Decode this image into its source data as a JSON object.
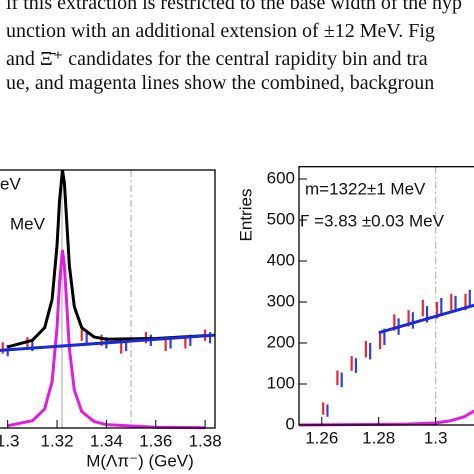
{
  "paragraph": {
    "lines": [
      "if this extraction is restricted to the base width of the hyp",
      "unction with an additional extension of ±12 MeV. Fig",
      "and Ξ̄⁺ candidates for the central rapidity bin and tra",
      "ue, and magenta lines show the combined, backgroun"
    ]
  },
  "chart_data": [
    {
      "type": "scatter",
      "x_label": "M(Λπ⁻) (GeV)",
      "annotations": [
        "eV",
        "MeV"
      ],
      "xlim": [
        1.29,
        1.384
      ],
      "ylim": [
        0,
        1000
      ],
      "xticks": [
        1.3,
        1.32,
        1.34,
        1.36,
        1.38
      ],
      "reference_lines": [
        {
          "x": 1.322,
          "style": "solid"
        },
        {
          "x": 1.35,
          "style": "dashed"
        }
      ],
      "series": [
        {
          "style": "points",
          "color": "#e8262e",
          "x": [
            1.298,
            1.308,
            1.33,
            1.338,
            1.346,
            1.356,
            1.364,
            1.372,
            1.38
          ],
          "values": [
            310,
            330,
            360,
            340,
            310,
            350,
            320,
            330,
            360
          ],
          "errors": [
            22,
            22,
            22,
            22,
            22,
            22,
            22,
            22,
            22
          ]
        },
        {
          "style": "points",
          "color": "#2f3fe0",
          "x": [
            1.3,
            1.31,
            1.332,
            1.34,
            1.348,
            1.358,
            1.366,
            1.374,
            1.382
          ],
          "values": [
            300,
            320,
            350,
            330,
            320,
            340,
            330,
            340,
            350
          ],
          "errors": [
            22,
            22,
            22,
            22,
            22,
            22,
            22,
            22,
            22
          ]
        },
        {
          "style": "line",
          "color": "#e01ee0",
          "x": [
            1.3,
            1.31,
            1.315,
            1.318,
            1.32,
            1.321,
            1.3222,
            1.323,
            1.325,
            1.327,
            1.33,
            1.335,
            1.34,
            1.36,
            1.38
          ],
          "values": [
            9,
            28,
            74,
            181,
            390,
            561,
            690,
            627,
            307,
            147,
            64,
            25,
            13,
            3,
            1
          ]
        },
        {
          "style": "line",
          "color": "#000000",
          "x": [
            1.3,
            1.31,
            1.315,
            1.318,
            1.32,
            1.321,
            1.3222,
            1.323,
            1.325,
            1.327,
            1.33,
            1.335,
            1.34,
            1.36,
            1.38
          ],
          "values": [
            314,
            340,
            389,
            498,
            708,
            880,
            1000,
            947,
            629,
            470,
            389,
            353,
            344,
            347,
            358
          ]
        },
        {
          "style": "line",
          "color": "#1a2ad8",
          "x": [
            1.29,
            1.384
          ],
          "values": [
            296,
            360
          ]
        }
      ]
    },
    {
      "type": "scatter",
      "y_label": "Entries",
      "annotations": [
        "m=1322±1 MeV",
        "Γ =3.83 ±0.03 MeV"
      ],
      "xlim": [
        1.252,
        1.33
      ],
      "ylim": [
        0,
        630
      ],
      "xticks": [
        1.26,
        1.28,
        1.3
      ],
      "yticks": [
        0,
        100,
        200,
        300,
        400,
        500,
        600
      ],
      "reference_lines": [
        {
          "x": 1.3,
          "style": "dashed"
        }
      ],
      "series": [
        {
          "style": "points",
          "color": "#e8262e",
          "x": [
            1.2605,
            1.2655,
            1.2705,
            1.2755,
            1.2805,
            1.2855,
            1.2905,
            1.2955,
            1.3005,
            1.3055,
            1.3105
          ],
          "values": [
            40,
            115,
            150,
            185,
            205,
            250,
            260,
            285,
            280,
            300,
            300
          ],
          "errors": [
            15,
            18,
            18,
            20,
            20,
            20,
            20,
            20,
            20,
            20,
            20
          ]
        },
        {
          "style": "points",
          "color": "#2f3fe0",
          "x": [
            1.262,
            1.267,
            1.272,
            1.277,
            1.282,
            1.287,
            1.292,
            1.297,
            1.302,
            1.307,
            1.312
          ],
          "values": [
            35,
            110,
            145,
            180,
            215,
            240,
            255,
            270,
            290,
            295,
            310
          ],
          "errors": [
            15,
            18,
            18,
            20,
            20,
            20,
            20,
            20,
            20,
            20,
            20
          ]
        },
        {
          "style": "line",
          "color": "#e01ee0",
          "x": [
            1.252,
            1.29,
            1.3,
            1.305,
            1.31,
            1.315
          ],
          "values": [
            0,
            2,
            5,
            10,
            20,
            40
          ]
        },
        {
          "style": "line",
          "color": "#1a2ad8",
          "x": [
            1.28,
            1.315
          ],
          "values": [
            225,
            295
          ]
        }
      ]
    }
  ]
}
